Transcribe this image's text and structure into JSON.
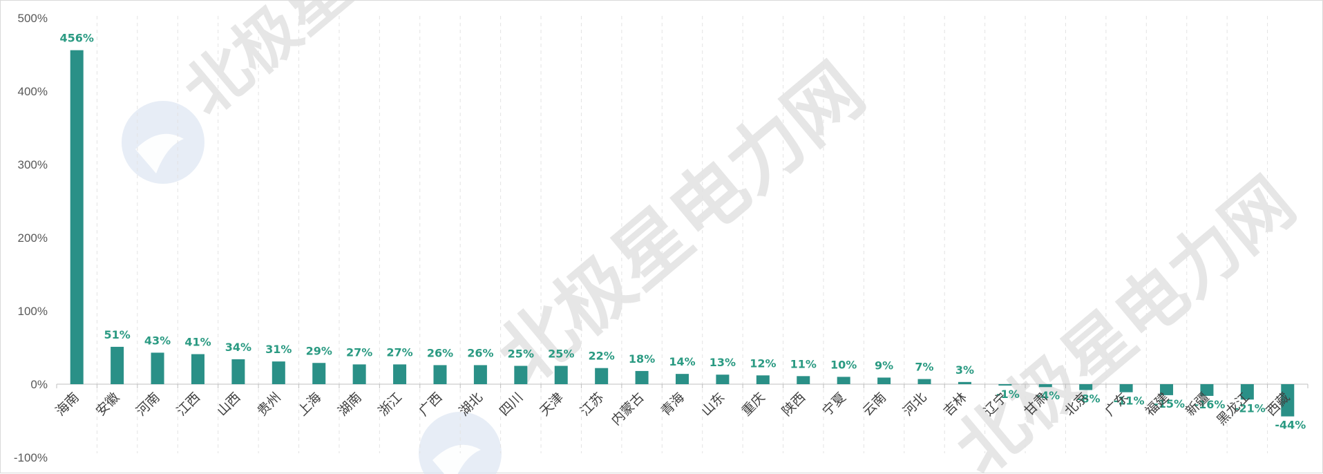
{
  "chart_data": {
    "type": "bar",
    "title": "",
    "xlabel": "",
    "ylabel": "",
    "ylim": [
      -100,
      500
    ],
    "yticks": [
      -100,
      0,
      100,
      200,
      300,
      400,
      500
    ],
    "ytick_labels": [
      "-100%",
      "0%",
      "100%",
      "200%",
      "300%",
      "400%",
      "500%"
    ],
    "grid": "vertical dashed separators between categories",
    "legend": "none",
    "categories": [
      "海南",
      "安徽",
      "河南",
      "江西",
      "山西",
      "贵州",
      "上海",
      "湖南",
      "浙江",
      "广西",
      "湖北",
      "四川",
      "天津",
      "江苏",
      "内蒙古",
      "青海",
      "山东",
      "重庆",
      "陕西",
      "宁夏",
      "云南",
      "河北",
      "吉林",
      "辽宁",
      "甘肃",
      "北京",
      "广东",
      "福建",
      "新疆",
      "黑龙江",
      "西藏"
    ],
    "values": [
      456,
      51,
      43,
      41,
      34,
      31,
      29,
      27,
      27,
      26,
      26,
      25,
      25,
      22,
      18,
      14,
      13,
      12,
      11,
      10,
      9,
      7,
      3,
      -1,
      -4,
      -8,
      -11,
      -15,
      -16,
      -21,
      -44
    ],
    "data_labels": [
      "456%",
      "51%",
      "43%",
      "41%",
      "34%",
      "31%",
      "29%",
      "27%",
      "27%",
      "26%",
      "26%",
      "25%",
      "25%",
      "22%",
      "18%",
      "14%",
      "13%",
      "12%",
      "11%",
      "10%",
      "9%",
      "7%",
      "3%",
      "-1%",
      "-4%",
      "-8%",
      "-11%",
      "-15%",
      "-16%",
      "-21%",
      "-44%"
    ],
    "bar_color": "#2a9087",
    "label_color": "#2a9a82"
  },
  "watermark": {
    "text": "北极星电力网",
    "color": "#c8c8c8",
    "logo_color": "#dde6f2"
  }
}
